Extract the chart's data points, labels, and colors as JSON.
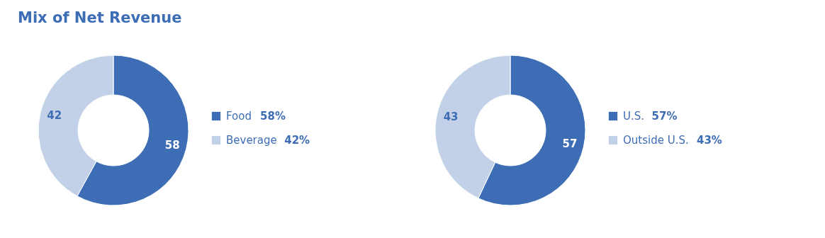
{
  "chart_data": [
    {
      "type": "donut",
      "title": "Mix of Net Revenue",
      "categories": [
        "Food",
        "Beverage"
      ],
      "values": [
        58,
        42
      ],
      "colors": [
        "#3d6db5",
        "#c3d1e8"
      ],
      "value_labels": [
        "58",
        "42"
      ],
      "annotations": [
        "58%",
        "42%"
      ],
      "legend": "right"
    },
    {
      "type": "donut",
      "categories": [
        "U.S.",
        "Outside U.S."
      ],
      "values": [
        57,
        43
      ],
      "colors": [
        "#3d6db5",
        "#c3d1e8"
      ],
      "value_labels": [
        "57",
        "43"
      ],
      "annotations": [
        "57%",
        "43%"
      ],
      "legend": "right"
    }
  ]
}
